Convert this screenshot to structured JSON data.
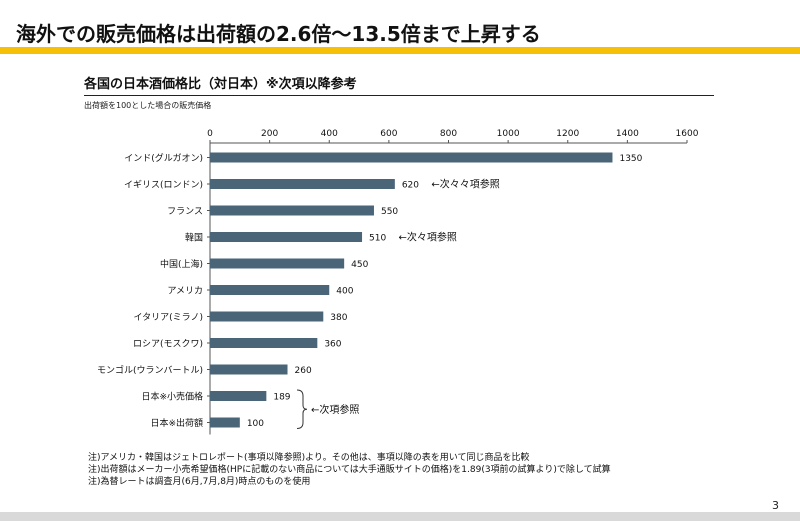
{
  "slide": {
    "title": "海外での販売価格は出荷額の2.6倍～13.5倍まで上昇する",
    "page_number": "3",
    "accent_color": "#f6bf08",
    "notes": [
      "注)アメリカ・韓国はジェトロレポート(事項以降参照)より。その他は、事項以降の表を用いて同じ商品を比較",
      "注)出荷額はメーカー小売希望価格(HPに記載のない商品については大手通販サイトの価格)を1.89(3項前の試算より)で除して試算",
      "注)為替レートは調査月(6月,7月,8月)時点のものを使用"
    ]
  },
  "chart_data": {
    "type": "bar",
    "orientation": "horizontal",
    "title": "各国の日本酒価格比（対日本）※次項以降参考",
    "subtitle": "出荷額を100とした場合の販売価格",
    "categories": [
      "インド(グルガオン)",
      "イギリス(ロンドン)",
      "フランス",
      "韓国",
      "中国(上海)",
      "アメリカ",
      "イタリア(ミラノ)",
      "ロシア(モスクワ)",
      "モンゴル(ウランバートル)",
      "日本※小売価格",
      "日本※出荷額"
    ],
    "values": [
      1350,
      620,
      550,
      510,
      450,
      400,
      380,
      360,
      260,
      189,
      100
    ],
    "data_labels": [
      "1350",
      "620",
      "550",
      "510",
      "450",
      "400",
      "380",
      "360",
      "260",
      "189",
      "100"
    ],
    "xlim": [
      0,
      1600
    ],
    "x_ticks": [
      "0",
      "200",
      "400",
      "600",
      "800",
      "1000",
      "1200",
      "1400",
      "1600"
    ],
    "tick_values": [
      0,
      200,
      400,
      600,
      800,
      1000,
      1200,
      1400,
      1600
    ],
    "axis_position": "top",
    "bar_color": "#4a6478",
    "annotations": [
      {
        "category": "イギリス(ロンドン)",
        "text": "←次々々項参照"
      },
      {
        "category": "韓国",
        "text": "←次々項参照"
      },
      {
        "category_range": [
          "日本※小売価格",
          "日本※出荷額"
        ],
        "text": "←次項参照",
        "bracket": true
      }
    ]
  }
}
